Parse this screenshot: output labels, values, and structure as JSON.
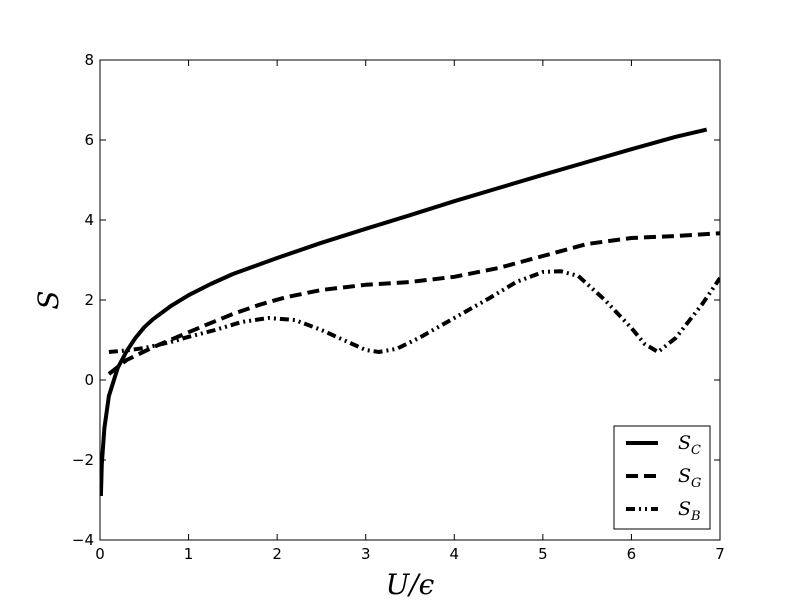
{
  "chart_data": {
    "type": "line",
    "title": "",
    "xlabel": "U/ϵ",
    "ylabel": "S",
    "xlim": [
      0,
      7
    ],
    "ylim": [
      -4,
      8
    ],
    "xticks": [
      "0",
      "1",
      "2",
      "3",
      "4",
      "5",
      "6",
      "7"
    ],
    "yticks": [
      "−4",
      "−2",
      "0",
      "2",
      "4",
      "6",
      "8"
    ],
    "grid": false,
    "legend_position": "lower right",
    "series": [
      {
        "name": "S_C",
        "label_main": "S",
        "label_sub": "C",
        "style": "solid",
        "color": "#000000",
        "points": [
          [
            0.01,
            -2.9
          ],
          [
            0.02,
            -2.1
          ],
          [
            0.05,
            -1.2
          ],
          [
            0.1,
            -0.4
          ],
          [
            0.2,
            0.3
          ],
          [
            0.3,
            0.72
          ],
          [
            0.4,
            1.05
          ],
          [
            0.5,
            1.32
          ],
          [
            0.6,
            1.52
          ],
          [
            0.8,
            1.85
          ],
          [
            1.0,
            2.12
          ],
          [
            1.25,
            2.4
          ],
          [
            1.5,
            2.65
          ],
          [
            2.0,
            3.05
          ],
          [
            2.5,
            3.43
          ],
          [
            3.0,
            3.78
          ],
          [
            3.5,
            4.12
          ],
          [
            4.0,
            4.47
          ],
          [
            4.5,
            4.8
          ],
          [
            5.0,
            5.13
          ],
          [
            5.5,
            5.45
          ],
          [
            6.0,
            5.77
          ],
          [
            6.5,
            6.08
          ],
          [
            6.85,
            6.26
          ]
        ]
      },
      {
        "name": "S_G",
        "label_main": "S",
        "label_sub": "G",
        "style": "dashed",
        "color": "#000000",
        "points": [
          [
            0.1,
            0.15
          ],
          [
            0.3,
            0.5
          ],
          [
            0.6,
            0.82
          ],
          [
            0.9,
            1.1
          ],
          [
            1.2,
            1.38
          ],
          [
            1.5,
            1.65
          ],
          [
            1.8,
            1.88
          ],
          [
            2.1,
            2.07
          ],
          [
            2.5,
            2.25
          ],
          [
            3.0,
            2.38
          ],
          [
            3.5,
            2.45
          ],
          [
            4.0,
            2.58
          ],
          [
            4.5,
            2.8
          ],
          [
            5.0,
            3.1
          ],
          [
            5.5,
            3.4
          ],
          [
            6.0,
            3.55
          ],
          [
            6.5,
            3.6
          ],
          [
            7.0,
            3.67
          ]
        ]
      },
      {
        "name": "S_B",
        "label_main": "S",
        "label_sub": "B",
        "style": "dash-dot-dot",
        "color": "#000000",
        "points": [
          [
            0.1,
            0.7
          ],
          [
            0.3,
            0.74
          ],
          [
            0.5,
            0.8
          ],
          [
            0.8,
            0.95
          ],
          [
            1.0,
            1.08
          ],
          [
            1.3,
            1.25
          ],
          [
            1.6,
            1.45
          ],
          [
            1.9,
            1.55
          ],
          [
            2.2,
            1.5
          ],
          [
            2.5,
            1.25
          ],
          [
            2.8,
            0.95
          ],
          [
            3.0,
            0.75
          ],
          [
            3.15,
            0.7
          ],
          [
            3.35,
            0.78
          ],
          [
            3.6,
            1.05
          ],
          [
            4.0,
            1.55
          ],
          [
            4.4,
            2.05
          ],
          [
            4.7,
            2.45
          ],
          [
            5.0,
            2.7
          ],
          [
            5.2,
            2.72
          ],
          [
            5.4,
            2.6
          ],
          [
            5.7,
            2.0
          ],
          [
            6.0,
            1.3
          ],
          [
            6.15,
            0.9
          ],
          [
            6.3,
            0.7
          ],
          [
            6.5,
            1.05
          ],
          [
            6.8,
            1.9
          ],
          [
            7.0,
            2.55
          ]
        ]
      }
    ]
  }
}
